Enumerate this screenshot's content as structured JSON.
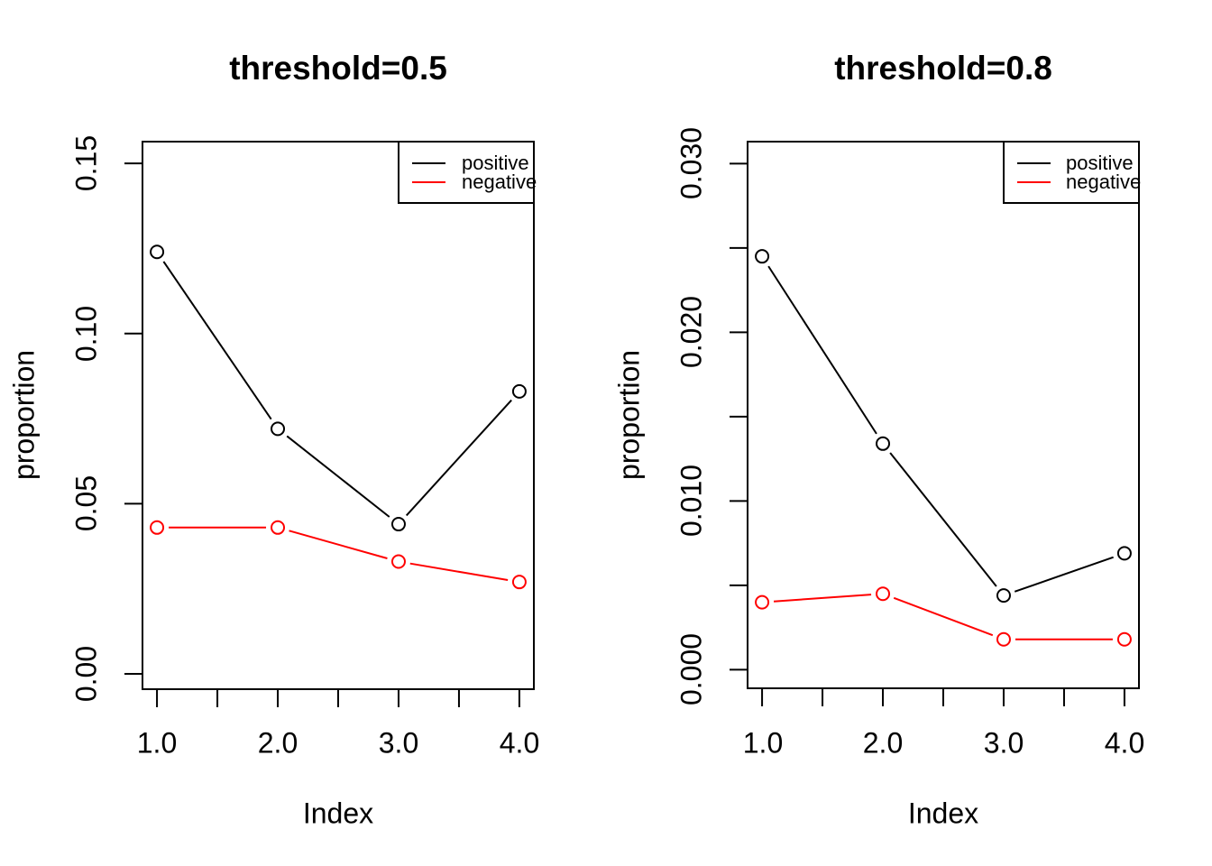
{
  "figure": {
    "background": "#ffffff",
    "colors": {
      "positive": "#000000",
      "negative": "#ff0000"
    }
  },
  "chart_data": [
    {
      "type": "line",
      "title": "threshold=0.5",
      "xlabel": "Index",
      "ylabel": "proportion",
      "grid": false,
      "legend_position": "topright",
      "x": [
        1,
        2,
        3,
        4
      ],
      "series": [
        {
          "name": "positive",
          "color": "#000000",
          "marker": "open-circle",
          "values": [
            0.124,
            0.072,
            0.044,
            0.083
          ]
        },
        {
          "name": "negative",
          "color": "#ff0000",
          "marker": "open-circle",
          "values": [
            0.043,
            0.043,
            0.033,
            0.027
          ]
        }
      ],
      "legend": {
        "entries": [
          {
            "label": "positive",
            "color": "#000000"
          },
          {
            "label": "negative",
            "color": "#ff0000"
          }
        ]
      },
      "xlim": [
        0.88,
        4.12
      ],
      "ylim": [
        -0.0045,
        0.1564
      ],
      "x_ticks": {
        "values": [
          1,
          1.5,
          2,
          2.5,
          3,
          3.5,
          4
        ],
        "labels": [
          {
            "value": 1,
            "text": "1.0"
          },
          {
            "value": 2,
            "text": "2.0"
          },
          {
            "value": 3,
            "text": "3.0"
          },
          {
            "value": 4,
            "text": "4.0"
          }
        ]
      },
      "y_ticks": {
        "values": [
          0,
          0.05,
          0.1,
          0.15
        ],
        "labels": [
          {
            "value": 0,
            "text": "0.00"
          },
          {
            "value": 0.05,
            "text": "0.05"
          },
          {
            "value": 0.1,
            "text": "0.10"
          },
          {
            "value": 0.15,
            "text": "0.15"
          }
        ]
      }
    },
    {
      "type": "line",
      "title": "threshold=0.8",
      "xlabel": "Index",
      "ylabel": "proportion",
      "grid": false,
      "legend_position": "topright",
      "x": [
        1,
        2,
        3,
        4
      ],
      "series": [
        {
          "name": "positive",
          "color": "#000000",
          "marker": "open-circle",
          "values": [
            0.0245,
            0.0134,
            0.0044,
            0.0069
          ]
        },
        {
          "name": "negative",
          "color": "#ff0000",
          "marker": "open-circle",
          "values": [
            0.004,
            0.0045,
            0.0018,
            0.0018
          ]
        }
      ],
      "legend": {
        "entries": [
          {
            "label": "positive",
            "color": "#000000"
          },
          {
            "label": "negative",
            "color": "#ff0000"
          }
        ]
      },
      "xlim": [
        0.88,
        4.12
      ],
      "ylim": [
        -0.0011,
        0.0313
      ],
      "x_ticks": {
        "values": [
          1,
          1.5,
          2,
          2.5,
          3,
          3.5,
          4
        ],
        "labels": [
          {
            "value": 1,
            "text": "1.0"
          },
          {
            "value": 2,
            "text": "2.0"
          },
          {
            "value": 3,
            "text": "3.0"
          },
          {
            "value": 4,
            "text": "4.0"
          }
        ]
      },
      "y_ticks": {
        "values": [
          0,
          0.005,
          0.01,
          0.015,
          0.02,
          0.025,
          0.03
        ],
        "labels": [
          {
            "value": 0,
            "text": "0.000"
          },
          {
            "value": 0.01,
            "text": "0.010"
          },
          {
            "value": 0.02,
            "text": "0.020"
          },
          {
            "value": 0.03,
            "text": "0.030"
          }
        ]
      }
    }
  ]
}
